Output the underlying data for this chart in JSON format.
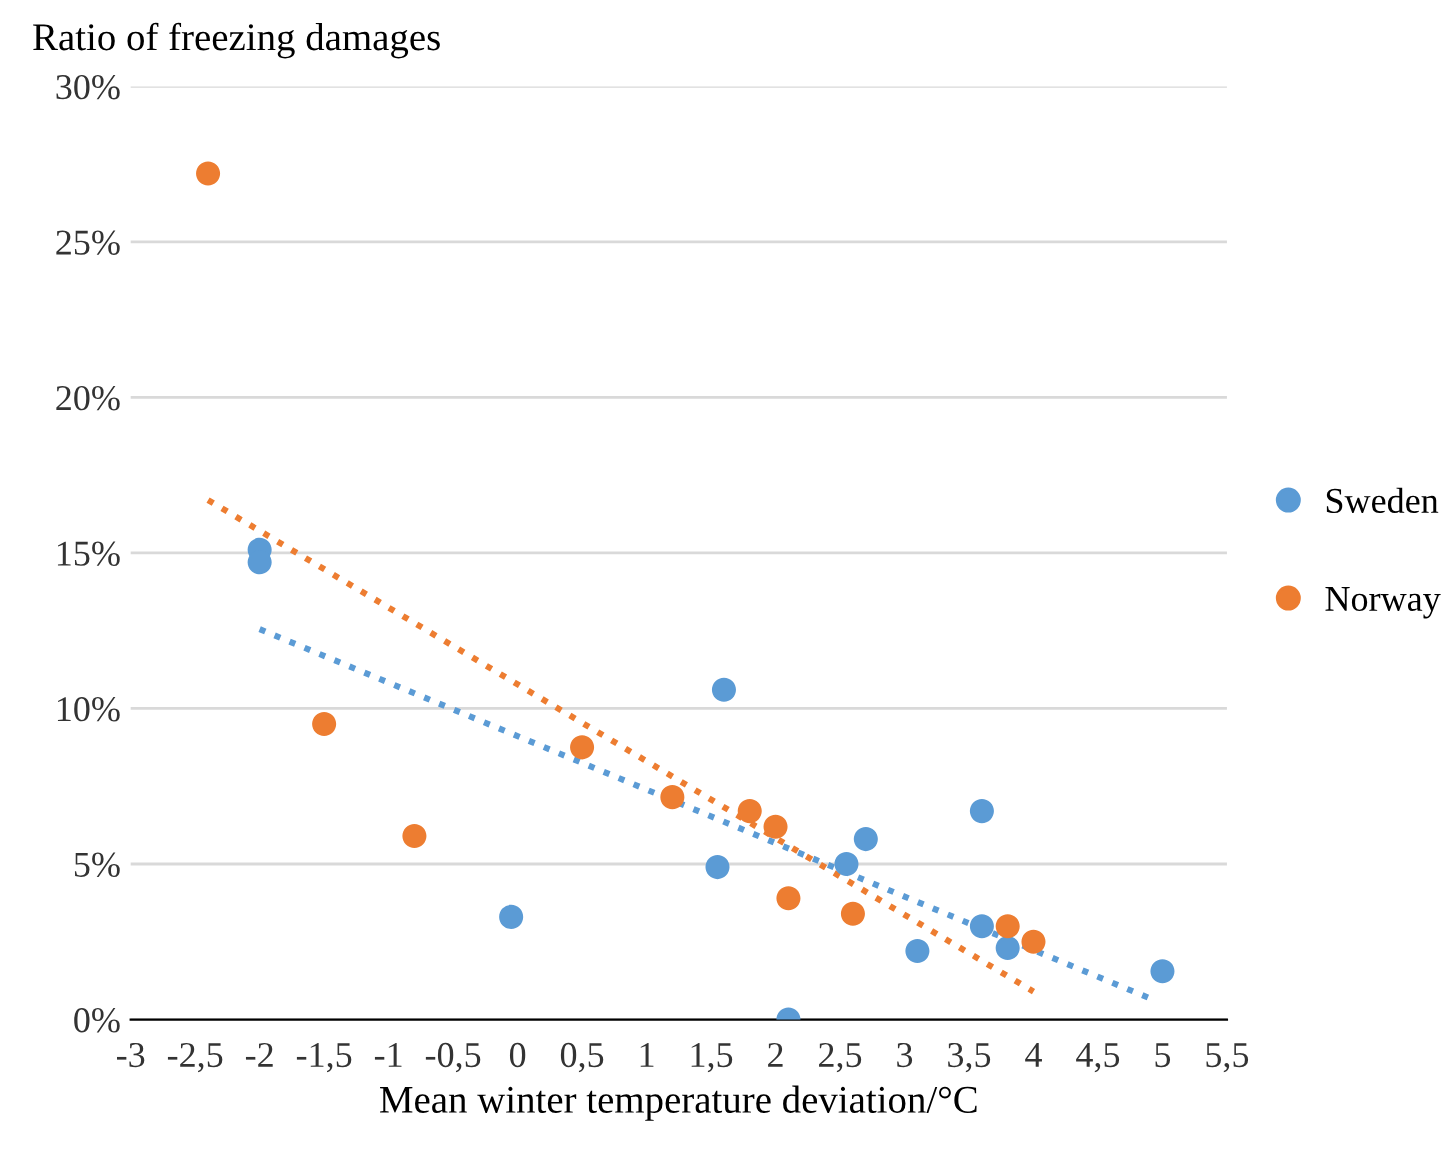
{
  "chart_data": {
    "type": "scatter",
    "ylabel": "Ratio of freezing damages",
    "xlabel": "Mean winter temperature deviation/°C",
    "series": [
      {
        "name": "Sweden",
        "color": "#5b9bd5",
        "x": [
          -2.0,
          -2.0,
          -0.05,
          1.6,
          1.55,
          2.1,
          2.55,
          2.7,
          3.1,
          3.6,
          3.6,
          3.8,
          5.0
        ],
        "values": [
          15.1,
          14.7,
          3.3,
          10.6,
          4.9,
          0,
          5.0,
          5.8,
          2.2,
          6.7,
          3.0,
          2.3,
          1.55
        ]
      },
      {
        "name": "Norway",
        "color": "#ed7d31",
        "x": [
          -2.4,
          -1.5,
          -0.8,
          0.5,
          1.2,
          1.8,
          2.0,
          2.1,
          2.6,
          3.8,
          4.0
        ],
        "values": [
          27.2,
          9.5,
          5.9,
          8.75,
          7.15,
          6.7,
          6.2,
          3.9,
          3.4,
          3.0,
          2.5
        ]
      },
      {
        "type": "line",
        "color": "#5b9bd5",
        "line_style": "dotted",
        "marker": "none",
        "x": [
          -2.0,
          4.95
        ],
        "values": [
          12.55,
          0.6
        ]
      },
      {
        "type": "line",
        "color": "#ed7d31",
        "line_style": "dotted",
        "marker": "none",
        "x": [
          -2.4,
          4.0
        ],
        "values": [
          16.7,
          0.9
        ]
      }
    ],
    "xlim": [
      -3,
      5.5
    ],
    "xticks": [
      {
        "value": -3,
        "label": "-3"
      },
      {
        "value": -2.5,
        "label": "-2,5"
      },
      {
        "value": -2,
        "label": "-2"
      },
      {
        "value": -1.5,
        "label": "-1,5"
      },
      {
        "value": -1,
        "label": "-1"
      },
      {
        "value": -0.5,
        "label": "-0,5"
      },
      {
        "value": 0,
        "label": "0"
      },
      {
        "value": 0.5,
        "label": "0,5"
      },
      {
        "value": 1,
        "label": "1"
      },
      {
        "value": 1.5,
        "label": "1,5"
      },
      {
        "value": 2,
        "label": "2"
      },
      {
        "value": 2.5,
        "label": "2,5"
      },
      {
        "value": 3,
        "label": "3"
      },
      {
        "value": 3.5,
        "label": "3,5"
      },
      {
        "value": 4,
        "label": "4"
      },
      {
        "value": 4.5,
        "label": "4,5"
      },
      {
        "value": 5,
        "label": "5"
      },
      {
        "value": 5.5,
        "label": "5,5"
      }
    ],
    "ylim": [
      0,
      30
    ],
    "yticks": [
      {
        "value": 0,
        "label": "0%"
      },
      {
        "value": 5,
        "label": "5%"
      },
      {
        "value": 10,
        "label": "10%"
      },
      {
        "value": 15,
        "label": "15%"
      },
      {
        "value": 20,
        "label": "20%"
      },
      {
        "value": 25,
        "label": "25%"
      },
      {
        "value": 30,
        "label": "30%"
      }
    ],
    "grid": "y",
    "legend": "right",
    "marker": "circle"
  }
}
